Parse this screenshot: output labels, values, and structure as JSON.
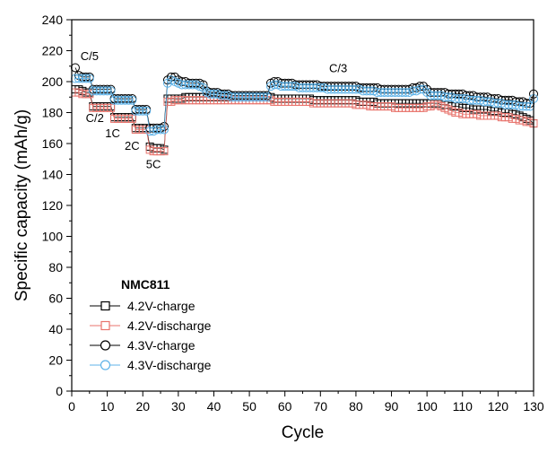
{
  "chart_data": {
    "type": "scatter",
    "xlabel": "Cycle",
    "ylabel": "Specific capacity (mAh/g)",
    "xlim": [
      0,
      130
    ],
    "ylim": [
      0,
      240
    ],
    "xticks": [
      0,
      10,
      20,
      30,
      40,
      50,
      60,
      70,
      80,
      90,
      100,
      110,
      120,
      130
    ],
    "yticks": [
      0,
      20,
      40,
      60,
      80,
      100,
      120,
      140,
      160,
      180,
      200,
      220,
      240
    ],
    "grid": false,
    "legend_title": "NMC811",
    "legend_position": "bottom-left",
    "annotations": [
      {
        "text": "C/5",
        "x": 5.0,
        "y": 214
      },
      {
        "text": "C/2",
        "x": 6.5,
        "y": 174
      },
      {
        "text": "1C",
        "x": 11.5,
        "y": 164
      },
      {
        "text": "2C",
        "x": 17,
        "y": 156
      },
      {
        "text": "5C",
        "x": 23,
        "y": 144
      },
      {
        "text": "C/3",
        "x": 75,
        "y": 206
      }
    ],
    "series": [
      {
        "name": "4.2V-charge",
        "marker": "square",
        "color": "#000000",
        "cycles": [
          1,
          130
        ],
        "values": [
          195,
          195,
          194,
          193,
          193,
          184,
          184,
          184,
          184,
          184,
          184,
          177,
          177,
          177,
          177,
          177,
          177,
          170,
          170,
          170,
          170,
          158,
          157,
          157,
          157,
          156,
          189,
          189,
          189,
          189,
          189,
          190,
          190,
          190,
          190,
          190,
          190,
          190,
          190,
          190,
          190,
          190,
          190,
          190,
          190,
          190,
          190,
          190,
          190,
          190,
          190,
          190,
          190,
          190,
          190,
          190,
          189,
          189,
          189,
          189,
          189,
          189,
          189,
          189,
          189,
          189,
          189,
          188,
          188,
          188,
          188,
          188,
          188,
          188,
          188,
          188,
          188,
          188,
          188,
          188,
          187,
          187,
          187,
          187,
          187,
          186,
          186,
          186,
          186,
          186,
          186,
          186,
          186,
          186,
          186,
          186,
          186,
          186,
          186,
          186,
          186,
          186,
          186,
          185,
          185,
          185,
          184,
          184,
          184,
          183,
          183,
          183,
          182,
          182,
          182,
          182,
          182,
          181,
          181,
          181,
          180,
          180,
          180,
          179,
          179,
          178,
          177,
          176,
          175,
          173
        ]
      },
      {
        "name": "4.2V-discharge",
        "marker": "square",
        "color": "#e8736c",
        "cycles": [
          1,
          130
        ],
        "values": [
          193,
          193,
          192,
          192,
          192,
          183,
          183,
          183,
          183,
          183,
          183,
          176,
          176,
          176,
          176,
          176,
          176,
          169,
          169,
          169,
          169,
          156,
          155,
          155,
          155,
          155,
          187,
          187,
          188,
          188,
          188,
          188,
          188,
          188,
          188,
          188,
          188,
          188,
          188,
          188,
          188,
          188,
          188,
          188,
          188,
          188,
          188,
          188,
          188,
          188,
          188,
          188,
          188,
          188,
          188,
          188,
          187,
          187,
          187,
          187,
          187,
          187,
          187,
          187,
          187,
          187,
          187,
          186,
          186,
          186,
          186,
          186,
          186,
          186,
          186,
          186,
          186,
          186,
          186,
          185,
          185,
          185,
          185,
          184,
          184,
          184,
          184,
          184,
          184,
          184,
          183,
          183,
          183,
          183,
          183,
          183,
          183,
          183,
          183,
          184,
          184,
          185,
          185,
          184,
          183,
          182,
          181,
          180,
          180,
          179,
          179,
          179,
          179,
          179,
          178,
          178,
          178,
          178,
          178,
          178,
          177,
          177,
          177,
          176,
          176,
          175,
          175,
          174,
          174,
          173
        ]
      },
      {
        "name": "4.3V-charge",
        "marker": "circle",
        "color": "#000000",
        "cycles": [
          1,
          130
        ],
        "values": [
          209,
          204,
          203,
          203,
          203,
          195,
          195,
          195,
          195,
          195,
          195,
          189,
          189,
          189,
          189,
          189,
          189,
          182,
          182,
          182,
          182,
          170,
          170,
          170,
          170,
          171,
          201,
          203,
          203,
          201,
          200,
          200,
          199,
          199,
          199,
          199,
          198,
          194,
          193,
          193,
          193,
          192,
          192,
          192,
          191,
          191,
          191,
          191,
          191,
          191,
          191,
          191,
          191,
          191,
          191,
          199,
          200,
          200,
          199,
          199,
          199,
          199,
          198,
          198,
          198,
          198,
          198,
          198,
          198,
          197,
          197,
          197,
          197,
          197,
          197,
          197,
          197,
          197,
          197,
          197,
          196,
          196,
          196,
          196,
          196,
          196,
          195,
          195,
          195,
          195,
          195,
          195,
          195,
          195,
          195,
          196,
          196,
          197,
          197,
          195,
          193,
          193,
          193,
          193,
          193,
          192,
          192,
          192,
          192,
          192,
          191,
          191,
          191,
          190,
          190,
          190,
          190,
          189,
          189,
          189,
          188,
          188,
          188,
          188,
          187,
          187,
          187,
          186,
          186,
          192
        ]
      },
      {
        "name": "4.3V-discharge",
        "marker": "circle",
        "color": "#5fb3e8",
        "cycles": [
          1,
          130
        ],
        "values": [
          202,
          202,
          202,
          202,
          202,
          194,
          194,
          194,
          194,
          194,
          194,
          188,
          188,
          188,
          188,
          188,
          188,
          181,
          181,
          181,
          181,
          168,
          168,
          169,
          169,
          169,
          199,
          201,
          200,
          199,
          198,
          198,
          198,
          198,
          198,
          197,
          196,
          193,
          192,
          192,
          192,
          191,
          191,
          191,
          190,
          190,
          190,
          190,
          190,
          190,
          190,
          190,
          190,
          190,
          190,
          197,
          198,
          198,
          197,
          197,
          197,
          197,
          197,
          196,
          196,
          196,
          196,
          196,
          196,
          196,
          196,
          195,
          195,
          195,
          195,
          195,
          195,
          195,
          195,
          195,
          195,
          194,
          194,
          194,
          194,
          193,
          193,
          193,
          193,
          193,
          193,
          193,
          193,
          193,
          193,
          194,
          194,
          195,
          195,
          193,
          191,
          191,
          191,
          191,
          190,
          190,
          190,
          189,
          189,
          189,
          189,
          188,
          188,
          188,
          188,
          187,
          187,
          187,
          186,
          186,
          186,
          185,
          185,
          185,
          185,
          184,
          184,
          184,
          184,
          189
        ]
      }
    ]
  }
}
